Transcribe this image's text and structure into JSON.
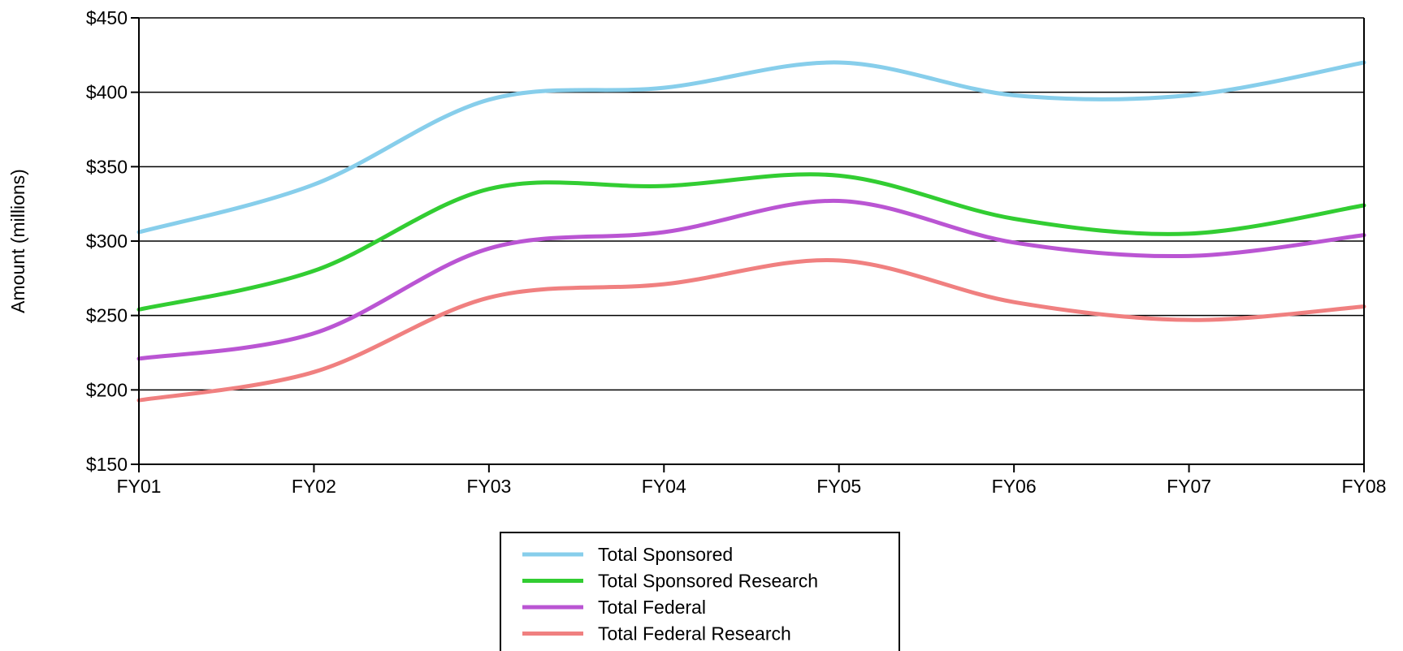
{
  "chart_data": {
    "type": "line",
    "title": "",
    "xlabel": "",
    "ylabel": "Amount (millions)",
    "categories": [
      "FY01",
      "FY02",
      "FY03",
      "FY04",
      "FY05",
      "FY06",
      "FY07",
      "FY08"
    ],
    "y_ticks": [
      "$150",
      "$200",
      "$250",
      "$300",
      "$350",
      "$400",
      "$450"
    ],
    "ylim": [
      150,
      450
    ],
    "grid": "horizontal",
    "legend_position": "bottom-center",
    "series": [
      {
        "name": "Total Sponsored",
        "color": "#87ceeb",
        "values": [
          306,
          338,
          395,
          403,
          420,
          398,
          398,
          420
        ]
      },
      {
        "name": "Total Sponsored Research",
        "color": "#32cd32",
        "values": [
          254,
          280,
          335,
          337,
          344,
          315,
          305,
          324
        ]
      },
      {
        "name": "Total Federal",
        "color": "#ba55d3",
        "values": [
          221,
          238,
          295,
          306,
          327,
          299,
          290,
          304
        ]
      },
      {
        "name": "Total Federal Research",
        "color": "#f08080",
        "values": [
          193,
          212,
          262,
          271,
          287,
          259,
          247,
          256
        ]
      }
    ]
  }
}
